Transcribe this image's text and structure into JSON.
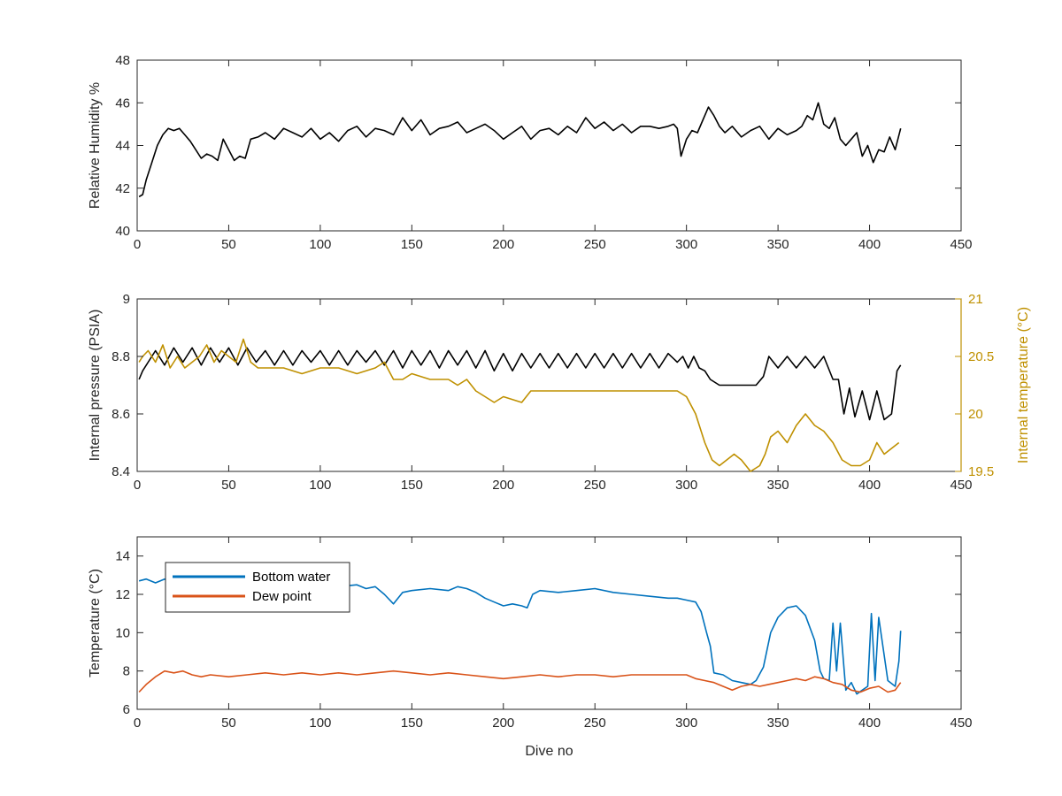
{
  "chart_data": [
    {
      "type": "line",
      "title": "",
      "xlabel": "",
      "ylabel": "Relative Humidity %",
      "xlim": [
        0,
        450
      ],
      "ylim": [
        40,
        48
      ],
      "xticks": [
        0,
        50,
        100,
        150,
        200,
        250,
        300,
        350,
        400,
        450
      ],
      "yticks": [
        40,
        42,
        44,
        46,
        48
      ],
      "xtick_labels": [
        "0",
        "50",
        "100",
        "150",
        "200",
        "250",
        "300",
        "350",
        "400",
        "450"
      ],
      "ytick_labels": [
        "40",
        "42",
        "44",
        "46",
        "48"
      ],
      "grid": false,
      "series": [
        {
          "color": "#000000",
          "x": [
            1,
            3,
            5,
            8,
            11,
            14,
            17,
            20,
            23,
            26,
            29,
            32,
            35,
            38,
            41,
            44,
            47,
            50,
            53,
            56,
            59,
            62,
            66,
            70,
            75,
            80,
            85,
            90,
            95,
            100,
            105,
            110,
            115,
            120,
            125,
            130,
            135,
            140,
            145,
            150,
            155,
            160,
            165,
            170,
            175,
            180,
            185,
            190,
            195,
            200,
            205,
            210,
            215,
            220,
            225,
            230,
            235,
            240,
            245,
            250,
            255,
            260,
            265,
            270,
            275,
            280,
            285,
            290,
            293,
            295,
            297,
            300,
            303,
            306,
            309,
            312,
            315,
            318,
            321,
            325,
            330,
            335,
            340,
            345,
            350,
            355,
            360,
            363,
            366,
            369,
            372,
            375,
            378,
            381,
            384,
            387,
            390,
            393,
            396,
            399,
            402,
            405,
            408,
            411,
            414,
            417
          ],
          "y": [
            41.6,
            41.7,
            42.4,
            43.2,
            44.0,
            44.5,
            44.8,
            44.7,
            44.8,
            44.5,
            44.2,
            43.8,
            43.4,
            43.6,
            43.5,
            43.3,
            44.3,
            43.8,
            43.3,
            43.5,
            43.4,
            44.3,
            44.4,
            44.6,
            44.3,
            44.8,
            44.6,
            44.4,
            44.8,
            44.3,
            44.6,
            44.2,
            44.7,
            44.9,
            44.4,
            44.8,
            44.7,
            44.5,
            45.3,
            44.7,
            45.2,
            44.5,
            44.8,
            44.9,
            45.1,
            44.6,
            44.8,
            45.0,
            44.7,
            44.3,
            44.6,
            44.9,
            44.3,
            44.7,
            44.8,
            44.5,
            44.9,
            44.6,
            45.3,
            44.8,
            45.1,
            44.7,
            45.0,
            44.6,
            44.9,
            44.9,
            44.8,
            44.9,
            45.0,
            44.8,
            43.5,
            44.3,
            44.7,
            44.6,
            45.2,
            45.8,
            45.4,
            44.9,
            44.6,
            44.9,
            44.4,
            44.7,
            44.9,
            44.3,
            44.8,
            44.5,
            44.7,
            44.9,
            45.4,
            45.2,
            46.0,
            45.0,
            44.8,
            45.3,
            44.3,
            44.0,
            44.3,
            44.6,
            43.5,
            44.0,
            43.2,
            43.8,
            43.7,
            44.4,
            43.8,
            44.8
          ]
        }
      ]
    },
    {
      "type": "line",
      "title": "",
      "xlabel": "",
      "ylabel": "Internal pressure (PSIA)",
      "ylabel_right": "Internal temperature (°C)",
      "xlim": [
        0,
        450
      ],
      "ylim": [
        8.4,
        9
      ],
      "ylim_right": [
        19.5,
        21
      ],
      "xticks": [
        0,
        50,
        100,
        150,
        200,
        250,
        300,
        350,
        400,
        450
      ],
      "yticks": [
        8.4,
        8.6,
        8.8,
        9
      ],
      "yticks_right": [
        19.5,
        20,
        20.5,
        21
      ],
      "xtick_labels": [
        "0",
        "50",
        "100",
        "150",
        "200",
        "250",
        "300",
        "350",
        "400",
        "450"
      ],
      "ytick_labels": [
        "8.4",
        "8.6",
        "8.8",
        "9"
      ],
      "ytick_labels_right": [
        "19.5",
        "20",
        "20.5",
        "21"
      ],
      "right_axis_color": "#bf9000",
      "grid": false,
      "series": [
        {
          "axis": "left",
          "color": "#000000",
          "x": [
            1,
            3,
            6,
            10,
            15,
            20,
            25,
            30,
            35,
            40,
            45,
            50,
            55,
            60,
            65,
            70,
            75,
            80,
            85,
            90,
            95,
            100,
            105,
            110,
            115,
            120,
            125,
            130,
            135,
            140,
            145,
            150,
            155,
            160,
            165,
            170,
            175,
            180,
            185,
            190,
            195,
            200,
            205,
            210,
            215,
            220,
            225,
            230,
            235,
            240,
            245,
            250,
            255,
            260,
            265,
            270,
            275,
            280,
            285,
            290,
            295,
            298,
            301,
            304,
            307,
            310,
            313,
            318,
            325,
            332,
            338,
            342,
            345,
            350,
            355,
            360,
            365,
            370,
            375,
            380,
            383,
            386,
            389,
            392,
            396,
            400,
            404,
            408,
            412,
            415,
            417
          ],
          "y": [
            8.72,
            8.75,
            8.78,
            8.82,
            8.77,
            8.83,
            8.78,
            8.83,
            8.77,
            8.83,
            8.78,
            8.83,
            8.77,
            8.83,
            8.78,
            8.82,
            8.77,
            8.82,
            8.77,
            8.82,
            8.78,
            8.82,
            8.77,
            8.82,
            8.77,
            8.82,
            8.78,
            8.82,
            8.77,
            8.82,
            8.76,
            8.82,
            8.77,
            8.82,
            8.76,
            8.82,
            8.77,
            8.82,
            8.76,
            8.82,
            8.75,
            8.81,
            8.75,
            8.81,
            8.76,
            8.81,
            8.76,
            8.81,
            8.76,
            8.81,
            8.76,
            8.81,
            8.76,
            8.81,
            8.76,
            8.81,
            8.76,
            8.81,
            8.76,
            8.81,
            8.78,
            8.8,
            8.76,
            8.8,
            8.76,
            8.75,
            8.72,
            8.7,
            8.7,
            8.7,
            8.7,
            8.73,
            8.8,
            8.76,
            8.8,
            8.76,
            8.8,
            8.76,
            8.8,
            8.72,
            8.72,
            8.6,
            8.69,
            8.59,
            8.68,
            8.58,
            8.68,
            8.58,
            8.6,
            8.75,
            8.77
          ]
        },
        {
          "axis": "right",
          "color": "#bf9000",
          "x": [
            1,
            3,
            6,
            10,
            14,
            18,
            22,
            26,
            30,
            34,
            38,
            42,
            46,
            50,
            54,
            58,
            62,
            66,
            70,
            80,
            90,
            100,
            110,
            120,
            130,
            135,
            140,
            145,
            150,
            160,
            170,
            175,
            180,
            185,
            190,
            195,
            200,
            210,
            215,
            220,
            230,
            240,
            250,
            260,
            270,
            280,
            290,
            295,
            300,
            305,
            310,
            314,
            318,
            322,
            326,
            330,
            335,
            340,
            343,
            346,
            350,
            355,
            360,
            365,
            370,
            375,
            380,
            385,
            390,
            395,
            400,
            404,
            408,
            412,
            416
          ],
          "y": [
            20.45,
            20.5,
            20.55,
            20.45,
            20.6,
            20.4,
            20.5,
            20.4,
            20.45,
            20.5,
            20.6,
            20.45,
            20.55,
            20.5,
            20.45,
            20.65,
            20.45,
            20.4,
            20.4,
            20.4,
            20.35,
            20.4,
            20.4,
            20.35,
            20.4,
            20.45,
            20.3,
            20.3,
            20.35,
            20.3,
            20.3,
            20.25,
            20.3,
            20.2,
            20.15,
            20.1,
            20.15,
            20.1,
            20.2,
            20.2,
            20.2,
            20.2,
            20.2,
            20.2,
            20.2,
            20.2,
            20.2,
            20.2,
            20.15,
            20.0,
            19.75,
            19.6,
            19.55,
            19.6,
            19.65,
            19.6,
            19.5,
            19.55,
            19.65,
            19.8,
            19.85,
            19.75,
            19.9,
            20.0,
            19.9,
            19.85,
            19.75,
            19.6,
            19.55,
            19.55,
            19.6,
            19.75,
            19.65,
            19.7,
            19.75
          ]
        }
      ]
    },
    {
      "type": "line",
      "title": "",
      "xlabel": "Dive no",
      "ylabel": "Temperature (°C)",
      "xlim": [
        0,
        450
      ],
      "ylim": [
        6,
        15
      ],
      "xticks": [
        0,
        50,
        100,
        150,
        200,
        250,
        300,
        350,
        400,
        450
      ],
      "yticks": [
        6,
        8,
        10,
        12,
        14
      ],
      "xtick_labels": [
        "0",
        "50",
        "100",
        "150",
        "200",
        "250",
        "300",
        "350",
        "400",
        "450"
      ],
      "ytick_labels": [
        "6",
        "8",
        "10",
        "12",
        "14"
      ],
      "grid": false,
      "legend_position": "top-left",
      "series": [
        {
          "name": "Bottom water",
          "color": "#0072bd",
          "x": [
            1,
            5,
            10,
            15,
            20,
            30,
            40,
            50,
            60,
            70,
            80,
            90,
            100,
            110,
            120,
            125,
            130,
            135,
            140,
            145,
            150,
            160,
            170,
            175,
            180,
            185,
            190,
            195,
            200,
            205,
            210,
            213,
            216,
            220,
            230,
            240,
            250,
            260,
            270,
            280,
            290,
            295,
            300,
            305,
            308,
            311,
            313,
            315,
            320,
            325,
            330,
            335,
            338,
            342,
            346,
            350,
            355,
            360,
            365,
            370,
            373,
            375,
            378,
            380,
            382,
            384,
            387,
            390,
            393,
            396,
            399,
            401,
            403,
            405,
            410,
            414,
            416,
            417
          ],
          "y": [
            12.7,
            12.8,
            12.6,
            12.8,
            12.5,
            12.4,
            12.6,
            12.3,
            12.4,
            12.5,
            12.6,
            12.5,
            12.6,
            12.4,
            12.5,
            12.3,
            12.4,
            12.0,
            11.5,
            12.1,
            12.2,
            12.3,
            12.2,
            12.4,
            12.3,
            12.1,
            11.8,
            11.6,
            11.4,
            11.5,
            11.4,
            11.3,
            12.0,
            12.2,
            12.1,
            12.2,
            12.3,
            12.1,
            12.0,
            11.9,
            11.8,
            11.8,
            11.7,
            11.6,
            11.1,
            10.0,
            9.3,
            7.9,
            7.8,
            7.5,
            7.4,
            7.3,
            7.5,
            8.2,
            10.0,
            10.8,
            11.3,
            11.4,
            10.9,
            9.6,
            8.0,
            7.6,
            7.5,
            10.5,
            8.0,
            10.5,
            7.0,
            7.4,
            6.8,
            7.0,
            7.2,
            11.0,
            7.5,
            10.8,
            7.5,
            7.2,
            8.5,
            10.1
          ]
        },
        {
          "name": "Dew point",
          "color": "#d95319",
          "x": [
            1,
            5,
            10,
            15,
            20,
            25,
            30,
            35,
            40,
            50,
            60,
            70,
            80,
            90,
            100,
            110,
            120,
            130,
            140,
            150,
            160,
            170,
            180,
            190,
            200,
            210,
            220,
            230,
            240,
            250,
            260,
            270,
            280,
            290,
            300,
            305,
            310,
            315,
            320,
            325,
            330,
            335,
            340,
            345,
            350,
            355,
            360,
            365,
            370,
            375,
            380,
            385,
            390,
            395,
            400,
            405,
            410,
            414,
            417
          ],
          "y": [
            6.9,
            7.3,
            7.7,
            8.0,
            7.9,
            8.0,
            7.8,
            7.7,
            7.8,
            7.7,
            7.8,
            7.9,
            7.8,
            7.9,
            7.8,
            7.9,
            7.8,
            7.9,
            8.0,
            7.9,
            7.8,
            7.9,
            7.8,
            7.7,
            7.6,
            7.7,
            7.8,
            7.7,
            7.8,
            7.8,
            7.7,
            7.8,
            7.8,
            7.8,
            7.8,
            7.6,
            7.5,
            7.4,
            7.2,
            7.0,
            7.2,
            7.3,
            7.2,
            7.3,
            7.4,
            7.5,
            7.6,
            7.5,
            7.7,
            7.6,
            7.4,
            7.3,
            7.0,
            6.9,
            7.1,
            7.2,
            6.9,
            7.0,
            7.4
          ]
        }
      ]
    }
  ]
}
